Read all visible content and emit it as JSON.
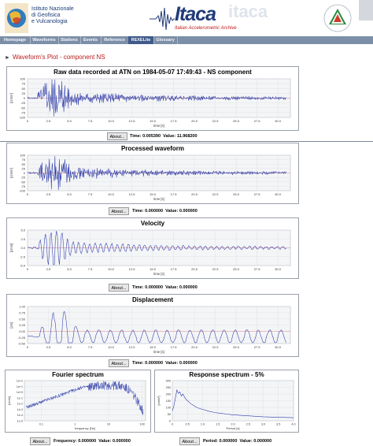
{
  "header": {
    "org_line1": "Istituto Nazionale",
    "org_line2": "di Geofisica",
    "org_line3": "e Vulcanologia",
    "app_title": "Itaca",
    "app_subtitle": "Italian Accelerometric Archive",
    "ghost_text": "itaca",
    "colors": {
      "brand": "#203a78",
      "accent": "#c01818"
    }
  },
  "nav": {
    "items": [
      {
        "label": "Homepage"
      },
      {
        "label": "Waveforms"
      },
      {
        "label": "Stations"
      },
      {
        "label": "Events"
      },
      {
        "label": "Reference"
      },
      {
        "label": "REXELite"
      },
      {
        "label": "Glossary"
      }
    ],
    "active_index": 5
  },
  "page": {
    "section_title": "Waveform's Plot - component NS"
  },
  "plots": [
    {
      "title": "Raw data recorded at ATN on 1984-05-07 17:49:43 - NS component",
      "ylabel": "[cm/s²]",
      "xlabel": "time [s]",
      "yticks": [
        "100",
        "75",
        "50",
        "25",
        "0",
        "-25",
        "-50",
        "-75",
        "-100"
      ],
      "xticks": [
        "0",
        "2.5",
        "5.0",
        "7.5",
        "10.0",
        "12.5",
        "15.0",
        "17.5",
        "20.0",
        "22.5",
        "25.0",
        "27.5",
        "30.0"
      ],
      "about": "About...",
      "time_label": "Time:",
      "time_value": "0.005390",
      "value_label": "Value:",
      "value_value": "11.968200"
    },
    {
      "title": "Processed waveform",
      "ylabel": "[cm/s²]",
      "xlabel": "time [s]",
      "yticks": [
        "100",
        "75",
        "50",
        "25",
        "0",
        "-25",
        "-50",
        "-75",
        "-100"
      ],
      "xticks": [
        "0",
        "2.5",
        "5.0",
        "7.5",
        "10.0",
        "12.5",
        "15.0",
        "17.5",
        "20.0",
        "22.5",
        "25.0",
        "27.5",
        "30.0"
      ],
      "about": "About...",
      "time_label": "Time:",
      "time_value": "0.000000",
      "value_label": "Value:",
      "value_value": "0.000000"
    },
    {
      "title": "Velocity",
      "ylabel": "[cm/s]",
      "xlabel": "time [s]",
      "yticks": [
        "5.0",
        "2.5",
        "0.0",
        "-2.5",
        "-5.0"
      ],
      "xticks": [
        "0",
        "2.5",
        "5.0",
        "7.5",
        "10.0",
        "12.5",
        "15.0",
        "17.5",
        "20.0",
        "22.5",
        "25.0",
        "27.5",
        "30.0"
      ],
      "about": "About...",
      "time_label": "Time:",
      "time_value": "0.000000",
      "value_label": "Value:",
      "value_value": "0.000000"
    },
    {
      "title": "Displacement",
      "ylabel": "[cm]",
      "xlabel": "time [s]",
      "yticks": [
        "1.00",
        "0.75",
        "0.50",
        "0.25",
        "0.00",
        "-0.25",
        "-0.50"
      ],
      "xticks": [
        "0",
        "2.5",
        "5.0",
        "7.5",
        "10.0",
        "12.5",
        "15.0",
        "17.5",
        "20.0",
        "22.5",
        "25.0",
        "27.5",
        "30.0"
      ],
      "about": "About...",
      "time_label": "Time:",
      "time_value": "0.000000",
      "value_label": "Value:",
      "value_value": "0.000000"
    }
  ],
  "fourier": {
    "title": "Fourier spectrum",
    "ylabel": "[cm/s]",
    "xlabel": "frequency [Hz]",
    "yticks": [
      "1e+2",
      "1e+1",
      "1e+0",
      "1e-1",
      "1e-2",
      "1e-3",
      "1e-4",
      "1e-5"
    ],
    "xticks": [
      "0.1",
      "1",
      "10",
      "100"
    ],
    "about": "About...",
    "freq_label": "Frequency:",
    "freq_value": "0.000000",
    "value_label": "Value:",
    "value_value": "0.000000"
  },
  "response": {
    "title": "Response spectrum - 5%",
    "ylabel": "[cm/s²]",
    "xlabel": "Period [s]",
    "yticks": [
      "300",
      "250",
      "200",
      "150",
      "100",
      "50",
      "0"
    ],
    "xticks": [
      "0",
      "0.5",
      "1.0",
      "1.5",
      "2.0",
      "2.5",
      "3.0",
      "3.5",
      "4.0"
    ],
    "about": "About...",
    "period_label": "Period:",
    "period_value": "0.000000",
    "value_label": "Value:",
    "value_value": "0.000000"
  }
}
